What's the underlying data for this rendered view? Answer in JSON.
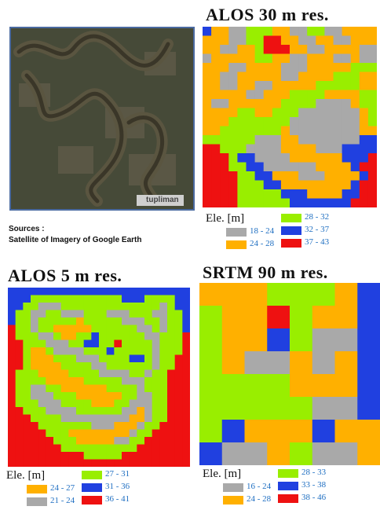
{
  "colors": {
    "gray": "#a9a9a9",
    "orange": "#ffb000",
    "green": "#99ee00",
    "blue": "#2040e0",
    "red": "#ee1111"
  },
  "satellite": {
    "sources_label": "Sources :",
    "sources_text": "Satellite of Imagery of Google Earth",
    "watermark": "tupliman"
  },
  "panels": {
    "alos30": {
      "title": "ALOS 30 m res.",
      "legend_title": "Ele. [m]",
      "legend": [
        {
          "range": "18 - 24",
          "color": "gray"
        },
        {
          "range": "24 - 28",
          "color": "orange"
        },
        {
          "range": "28 - 32",
          "color": "green"
        },
        {
          "range": "32 - 37",
          "color": "blue"
        },
        {
          "range": "37 - 43",
          "color": "red"
        }
      ]
    },
    "alos5": {
      "title": "ALOS 5 m res.",
      "legend_title": "Ele. [m]",
      "legend": [
        {
          "range": "24 - 27",
          "color": "orange"
        },
        {
          "range": "21 - 24",
          "color": "gray"
        },
        {
          "range": "27 - 31",
          "color": "green"
        },
        {
          "range": "31 - 36",
          "color": "blue"
        },
        {
          "range": "36 - 41",
          "color": "red"
        }
      ]
    },
    "srtm90": {
      "title": "SRTM 90 m res.",
      "legend_title": "Ele. [m]",
      "legend": [
        {
          "range": "16 - 24",
          "color": "gray"
        },
        {
          "range": "24 - 28",
          "color": "orange"
        },
        {
          "range": "28 - 33",
          "color": "green"
        },
        {
          "range": "33 - 38",
          "color": "blue"
        },
        {
          "range": "38 - 46",
          "color": "red"
        }
      ]
    }
  }
}
